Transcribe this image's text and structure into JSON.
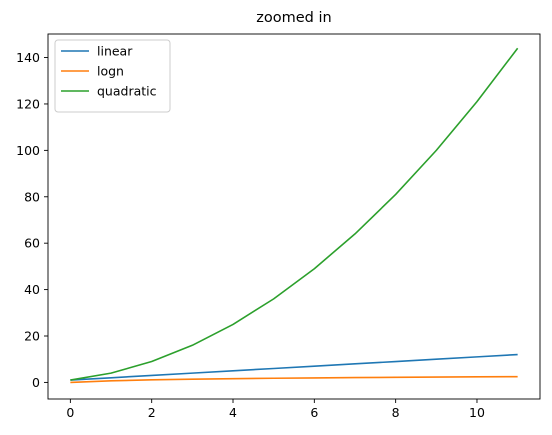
{
  "chart_data": {
    "type": "line",
    "title": "zoomed in",
    "xlabel": "",
    "ylabel": "",
    "x": [
      0,
      1,
      2,
      3,
      4,
      5,
      6,
      7,
      8,
      9,
      10,
      11
    ],
    "xlim": [
      -0.55,
      11.55
    ],
    "ylim": [
      -7.15,
      150.15
    ],
    "x_ticks": [
      0,
      2,
      4,
      6,
      8,
      10
    ],
    "y_ticks": [
      0,
      20,
      40,
      60,
      80,
      100,
      120,
      140
    ],
    "grid": false,
    "legend_position": "top-left",
    "series": [
      {
        "name": "linear",
        "color": "#1f77b4",
        "values": [
          1,
          2,
          3,
          4,
          5,
          6,
          7,
          8,
          9,
          10,
          11,
          12
        ]
      },
      {
        "name": "logn",
        "color": "#ff7f0e",
        "values": [
          0,
          0.693,
          1.099,
          1.386,
          1.609,
          1.792,
          1.946,
          2.079,
          2.197,
          2.303,
          2.398,
          2.485
        ]
      },
      {
        "name": "quadratic",
        "color": "#2ca02c",
        "values": [
          1,
          4,
          9,
          16,
          25,
          36,
          49,
          64,
          81,
          100,
          121,
          144
        ]
      }
    ]
  }
}
